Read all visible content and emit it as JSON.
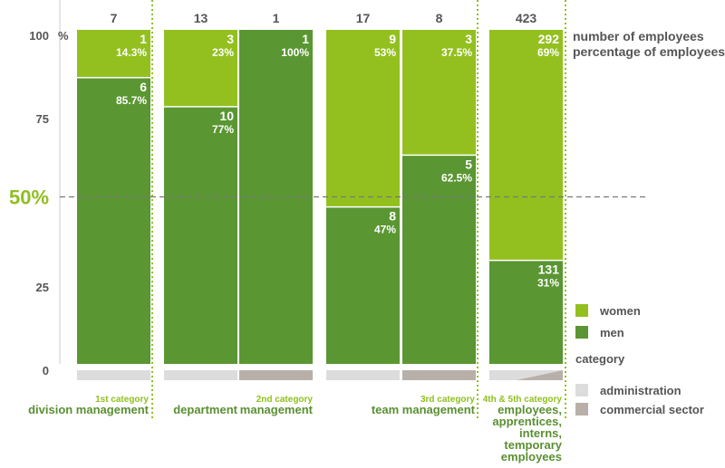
{
  "chart_data": {
    "type": "bar",
    "stacked": true,
    "y_unit": "%",
    "ylim": [
      0,
      100
    ],
    "y_ticks": [
      "0",
      "25",
      "75",
      "100"
    ],
    "reference_line": {
      "value": 50,
      "label": "50%"
    },
    "grid": false,
    "colors": {
      "women": "#93c01f",
      "men": "#5a9632",
      "administration": "#dcdcdc",
      "commercial": "#b8b0a8",
      "guides": "#8fbf1f"
    },
    "legend": {
      "placement": "right",
      "header_lines": [
        "number of employees",
        "percentage of employees"
      ],
      "series": [
        {
          "key": "women",
          "label": "women"
        },
        {
          "key": "men",
          "label": "men"
        }
      ],
      "category_title": "category",
      "categories": [
        {
          "key": "administration",
          "label": "administration"
        },
        {
          "key": "commercial",
          "label": "commercial sector"
        }
      ]
    },
    "bars": [
      {
        "total": "7",
        "sector": "administration",
        "women_count": "1",
        "women_pct": 14.3,
        "women_label": "14.3%",
        "men_count": "6",
        "men_pct": 85.7,
        "men_label": "85.7%"
      },
      {
        "total": "13",
        "sector": "administration",
        "women_count": "3",
        "women_pct": 23,
        "women_label": "23%",
        "men_count": "10",
        "men_pct": 77,
        "men_label": "77%"
      },
      {
        "total": "1",
        "sector": "commercial",
        "women_count": "",
        "women_pct": 0,
        "women_label": "",
        "men_count": "1",
        "men_pct": 100,
        "men_label": "100%"
      },
      {
        "total": "17",
        "sector": "administration",
        "women_count": "9",
        "women_pct": 53,
        "women_label": "53%",
        "men_count": "8",
        "men_pct": 47,
        "men_label": "47%"
      },
      {
        "total": "8",
        "sector": "commercial",
        "women_count": "3",
        "women_pct": 37.5,
        "women_label": "37.5%",
        "men_count": "5",
        "men_pct": 62.5,
        "men_label": "62.5%"
      },
      {
        "total": "423",
        "sector": "mixed",
        "women_count": "292",
        "women_pct": 69,
        "women_label": "69%",
        "men_count": "131",
        "men_pct": 31,
        "men_label": "31%"
      }
    ],
    "groups": [
      {
        "small": "1st category",
        "big": [
          "division management"
        ]
      },
      {
        "small": "2nd category",
        "big": [
          "department",
          "management"
        ]
      },
      {
        "small": "3rd category",
        "big": [
          "team management"
        ]
      },
      {
        "small": "4th & 5th category",
        "big": [
          "employees,",
          "apprentices,",
          "interns,",
          "temporary",
          "employees"
        ]
      }
    ]
  }
}
